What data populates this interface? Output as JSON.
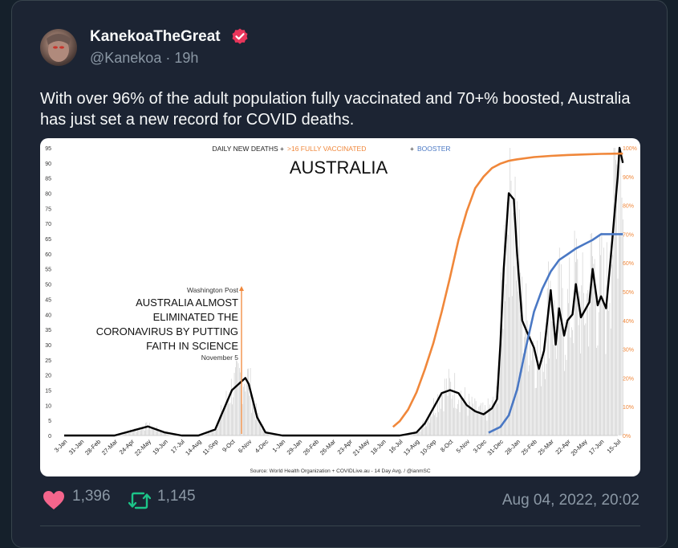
{
  "tweet": {
    "author_name": "KanekoaTheGreat",
    "handle": "@Kanekoa",
    "time_ago": "19h",
    "handle_line": "@Kanekoa · 19h",
    "text": "With over 96% of the adult population fully vaccinated and 70+% boosted, Australia has just set a new record for COVID deaths.",
    "likes": "1,396",
    "retweets": "1,145",
    "timestamp": "Aug 04, 2022, 20:02"
  },
  "colors": {
    "background": "#15202b",
    "card": "#1c2433",
    "like_heart": "#f4658c",
    "retweet": "#1cc488",
    "verified": "#e8365b",
    "vaccinated_line": "#f0873a",
    "booster_line": "#4a78c4"
  },
  "chart_data": {
    "type": "line",
    "title_prefix": "DAILY NEW DEATHS +",
    "title_vaccinated": ">16 FULLY VACCINATED",
    "title_plus": "+",
    "title_booster": "BOOSTER",
    "title": "AUSTRALIA",
    "annotation": {
      "source": "Washington Post",
      "headline": [
        "AUSTRALIA ALMOST",
        "ELIMINATED THE",
        "CORONAVIRUS BY PUTTING",
        "FAITH IN SCIENCE"
      ],
      "date": "November 5"
    },
    "source_note": "Source: World Health Organization + COVIDLive.au - 14 Day Avg. / @ianmSC",
    "x_ticks": [
      "3-Jan",
      "31-Jan",
      "28-Feb",
      "27-Mar",
      "24-Apr",
      "22-May",
      "19-Jun",
      "17-Jul",
      "14-Aug",
      "11-Sep",
      "9-Oct",
      "6-Nov",
      "4-Dec",
      "1-Jan",
      "29-Jan",
      "26-Feb",
      "26-Mar",
      "23-Apr",
      "21-May",
      "18-Jun",
      "16-Jul",
      "13-Aug",
      "10-Sep",
      "8-Oct",
      "5-Nov",
      "3-Dec",
      "31-Dec",
      "28-Jan",
      "25-Feb",
      "25-Mar",
      "22-Apr",
      "20-May",
      "17-Jun",
      "15-Jul"
    ],
    "y_left_ticks": [
      "95",
      "90",
      "85",
      "80",
      "75",
      "70",
      "65",
      "60",
      "55",
      "50",
      "45",
      "40",
      "35",
      "30",
      "25",
      "20",
      "15",
      "10",
      "5",
      "0"
    ],
    "y_right_ticks": [
      "100%",
      "90%",
      "80%",
      "70%",
      "60%",
      "50%",
      "40%",
      "30%",
      "20%",
      "10%",
      "0%"
    ],
    "ylim_left": [
      0,
      95
    ],
    "ylim_right": [
      0,
      100
    ],
    "series": [
      {
        "name": "Daily new deaths (14-day avg)",
        "axis": "left",
        "color": "#000000",
        "x": [
          0,
          3,
          5,
          6,
          7,
          8,
          9,
          10,
          10.8,
          11,
          11.5,
          12,
          13,
          14,
          15,
          16,
          17,
          18,
          19,
          20,
          21,
          21.5,
          22,
          22.5,
          23,
          23.5,
          24,
          24.5,
          25,
          25.5,
          25.8,
          26,
          26.2,
          26.5,
          26.8,
          27,
          27.3,
          27.6,
          28,
          28.3,
          28.6,
          29,
          29.3,
          29.5,
          29.8,
          30,
          30.3,
          30.5,
          30.8,
          31,
          31.3,
          31.5,
          31.8,
          32,
          32.3,
          32.6,
          32.8,
          33,
          33.1,
          33.3
        ],
        "y": [
          0,
          0,
          3,
          1,
          0,
          0,
          2,
          15,
          19,
          17,
          6,
          1,
          0,
          0,
          0,
          0,
          0,
          0,
          0,
          0,
          1,
          4,
          9,
          14,
          15,
          14,
          10,
          8,
          7,
          9,
          12,
          30,
          55,
          80,
          78,
          60,
          38,
          34,
          29,
          22,
          28,
          48,
          30,
          42,
          33,
          38,
          40,
          50,
          39,
          41,
          44,
          55,
          43,
          46,
          42,
          60,
          73,
          86,
          95,
          90
        ]
      },
      {
        "name": ">16 Fully vaccinated",
        "axis": "right",
        "color": "#f0873a",
        "x": [
          19.6,
          20,
          20.5,
          21,
          21.5,
          22,
          22.5,
          23,
          23.5,
          24,
          24.5,
          25,
          25.5,
          26,
          26.5,
          27,
          28,
          29,
          30,
          31,
          32,
          33,
          33.3
        ],
        "y": [
          3,
          5,
          9,
          15,
          23,
          32,
          43,
          55,
          68,
          78,
          86,
          90,
          93,
          94.5,
          95.5,
          96,
          96.8,
          97.2,
          97.5,
          97.7,
          97.9,
          98,
          98
        ]
      },
      {
        "name": "Booster",
        "axis": "right",
        "color": "#4a78c4",
        "x": [
          25.3,
          26,
          26.5,
          27,
          27.5,
          28,
          28.5,
          29,
          29.5,
          30,
          30.5,
          31,
          31.5,
          32,
          32.5,
          33,
          33.3
        ],
        "y": [
          1,
          3,
          7,
          16,
          30,
          43,
          51,
          57,
          61,
          63,
          65,
          66.5,
          68,
          70,
          70,
          70,
          70
        ]
      }
    ]
  }
}
